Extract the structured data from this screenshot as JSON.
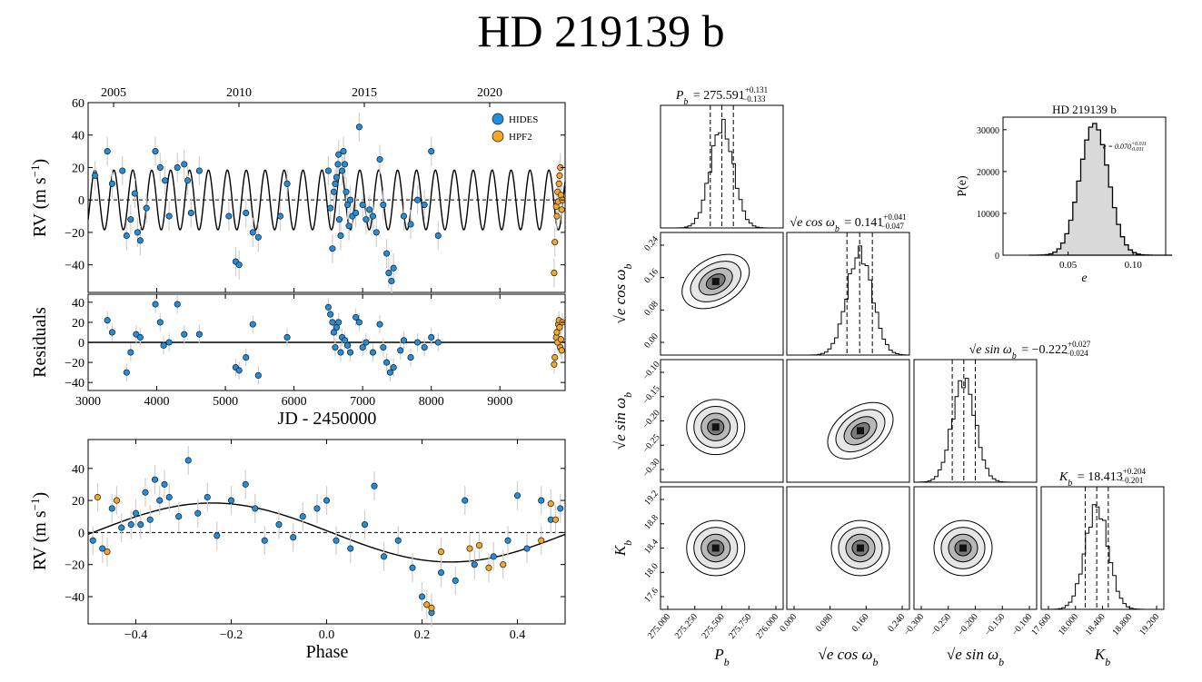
{
  "title": "HD 219139 b",
  "chart_data": [
    {
      "type": "scatter",
      "name": "rv-time-series",
      "xlabel": "JD - 2450000",
      "ylabel": "RV (m s",
      "ylabel_unit": "−1",
      "xlim": [
        3000,
        9950
      ],
      "ylim": [
        -57,
        60
      ],
      "xticks": [
        "3000",
        "4000",
        "5000",
        "6000",
        "7000",
        "8000",
        "9000"
      ],
      "yticks": [
        "−40",
        "−20",
        "0",
        "20",
        "40",
        "60"
      ],
      "top_axis_ticks": [
        "2005",
        "2010",
        "2015",
        "2020"
      ],
      "top_axis_values": [
        3371,
        5198,
        7024,
        8851
      ],
      "model": {
        "K": 18.4,
        "P": 275.591,
        "t0": 3100
      },
      "legend": [
        "HIDES",
        "HPF2"
      ],
      "series": [
        {
          "name": "HIDES",
          "color": "#1f8fe0",
          "points": [
            [
              3100,
              15
            ],
            [
              3280,
              30
            ],
            [
              3350,
              10
            ],
            [
              3500,
              18
            ],
            [
              3560,
              -22
            ],
            [
              3620,
              -12
            ],
            [
              3680,
              4
            ],
            [
              3720,
              -20
            ],
            [
              3760,
              -25
            ],
            [
              3850,
              -5
            ],
            [
              3980,
              30
            ],
            [
              4050,
              20
            ],
            [
              4120,
              12
            ],
            [
              4180,
              -10
            ],
            [
              4300,
              20
            ],
            [
              4400,
              22
            ],
            [
              4450,
              12
            ],
            [
              4500,
              -8
            ],
            [
              4620,
              18
            ],
            [
              5050,
              -10
            ],
            [
              5150,
              -38
            ],
            [
              5200,
              -40
            ],
            [
              5300,
              -8
            ],
            [
              5400,
              -20
            ],
            [
              5480,
              -23
            ],
            [
              5800,
              -10
            ],
            [
              5900,
              10
            ],
            [
              6500,
              18
            ],
            [
              6530,
              -5
            ],
            [
              6560,
              -30
            ],
            [
              6580,
              5
            ],
            [
              6600,
              10
            ],
            [
              6620,
              14
            ],
            [
              6640,
              22
            ],
            [
              6650,
              28
            ],
            [
              6660,
              -12
            ],
            [
              6680,
              -22
            ],
            [
              6700,
              18
            ],
            [
              6720,
              30
            ],
            [
              6740,
              22
            ],
            [
              6760,
              5
            ],
            [
              6780,
              -3
            ],
            [
              6800,
              -16
            ],
            [
              6820,
              0
            ],
            [
              6850,
              -10
            ],
            [
              6900,
              -8
            ],
            [
              6950,
              45
            ],
            [
              7000,
              -3
            ],
            [
              7050,
              -12
            ],
            [
              7100,
              -6
            ],
            [
              7150,
              -10
            ],
            [
              7200,
              -20
            ],
            [
              7250,
              25
            ],
            [
              7300,
              -3
            ],
            [
              7350,
              -33
            ],
            [
              7380,
              -45
            ],
            [
              7420,
              -50
            ],
            [
              7450,
              -42
            ],
            [
              7600,
              -10
            ],
            [
              7700,
              -15
            ],
            [
              7800,
              0
            ],
            [
              7900,
              -3
            ],
            [
              8000,
              30
            ],
            [
              8100,
              -22
            ]
          ]
        },
        {
          "name": "HPF2",
          "color": "#f5a623",
          "points": [
            [
              9790,
              -45
            ],
            [
              9800,
              -26
            ],
            [
              9820,
              -4
            ],
            [
              9830,
              -10
            ],
            [
              9840,
              5
            ],
            [
              9850,
              -1
            ],
            [
              9860,
              10
            ],
            [
              9870,
              15
            ],
            [
              9880,
              20
            ],
            [
              9890,
              3
            ],
            [
              9900,
              -6
            ],
            [
              9910,
              0
            ]
          ]
        }
      ]
    },
    {
      "type": "scatter",
      "name": "residuals",
      "ylabel": "Residuals",
      "xlim": [
        3000,
        9950
      ],
      "ylim": [
        -48,
        48
      ],
      "yticks": [
        "−40",
        "−20",
        "0",
        "20",
        "40"
      ],
      "series": [
        {
          "name": "HIDES",
          "color": "#1f8fe0",
          "points": [
            [
              3280,
              22
            ],
            [
              3350,
              10
            ],
            [
              3560,
              -30
            ],
            [
              3620,
              -10
            ],
            [
              3700,
              8
            ],
            [
              3760,
              5
            ],
            [
              3980,
              38
            ],
            [
              4050,
              20
            ],
            [
              4100,
              -3
            ],
            [
              4180,
              0
            ],
            [
              4300,
              38
            ],
            [
              4400,
              8
            ],
            [
              4620,
              8
            ],
            [
              5150,
              -25
            ],
            [
              5200,
              -28
            ],
            [
              5300,
              -15
            ],
            [
              5400,
              18
            ],
            [
              5480,
              -33
            ],
            [
              5900,
              5
            ],
            [
              6500,
              35
            ],
            [
              6530,
              28
            ],
            [
              6560,
              20
            ],
            [
              6580,
              10
            ],
            [
              6600,
              -5
            ],
            [
              6620,
              15
            ],
            [
              6650,
              20
            ],
            [
              6680,
              -10
            ],
            [
              6700,
              5
            ],
            [
              6740,
              2
            ],
            [
              6780,
              -3
            ],
            [
              6820,
              -10
            ],
            [
              6900,
              25
            ],
            [
              6950,
              20
            ],
            [
              7000,
              -5
            ],
            [
              7050,
              0
            ],
            [
              7150,
              -10
            ],
            [
              7250,
              18
            ],
            [
              7300,
              -5
            ],
            [
              7350,
              -20
            ],
            [
              7400,
              -30
            ],
            [
              7450,
              -25
            ],
            [
              7550,
              -8
            ],
            [
              7600,
              2
            ],
            [
              7700,
              -15
            ],
            [
              7800,
              0
            ],
            [
              7900,
              -5
            ],
            [
              8000,
              5
            ],
            [
              8100,
              0
            ]
          ]
        },
        {
          "name": "HPF2",
          "color": "#f5a623",
          "points": [
            [
              9790,
              -22
            ],
            [
              9800,
              -15
            ],
            [
              9820,
              5
            ],
            [
              9830,
              10
            ],
            [
              9840,
              0
            ],
            [
              9850,
              18
            ],
            [
              9860,
              22
            ],
            [
              9870,
              15
            ],
            [
              9880,
              -5
            ],
            [
              9890,
              3
            ],
            [
              9900,
              -8
            ],
            [
              9910,
              20
            ]
          ]
        }
      ]
    },
    {
      "type": "scatter",
      "name": "phase-folded",
      "xlabel": "Phase",
      "ylabel": "RV (m s",
      "ylabel_unit": "−1",
      "xlim": [
        -0.5,
        0.5
      ],
      "ylim": [
        -57,
        58
      ],
      "xticks": [
        "−0.4",
        "−0.2",
        "0.0",
        "0.2",
        "0.4"
      ],
      "yticks": [
        "−40",
        "−20",
        "0",
        "20",
        "40"
      ],
      "model": {
        "K": 18.4,
        "phase_min": 0.26
      },
      "series": [
        {
          "name": "HIDES",
          "color": "#1f8fe0",
          "points": [
            [
              -0.49,
              -5
            ],
            [
              -0.47,
              -10
            ],
            [
              -0.45,
              15
            ],
            [
              -0.43,
              3
            ],
            [
              -0.41,
              5
            ],
            [
              -0.4,
              12
            ],
            [
              -0.39,
              5
            ],
            [
              -0.38,
              25
            ],
            [
              -0.37,
              8
            ],
            [
              -0.36,
              33
            ],
            [
              -0.35,
              20
            ],
            [
              -0.34,
              30
            ],
            [
              -0.33,
              22
            ],
            [
              -0.31,
              10
            ],
            [
              -0.29,
              45
            ],
            [
              -0.27,
              12
            ],
            [
              -0.25,
              22
            ],
            [
              -0.23,
              -2
            ],
            [
              -0.2,
              20
            ],
            [
              -0.17,
              30
            ],
            [
              -0.15,
              15
            ],
            [
              -0.13,
              -5
            ],
            [
              -0.1,
              5
            ],
            [
              -0.07,
              -3
            ],
            [
              -0.05,
              10
            ],
            [
              -0.02,
              15
            ],
            [
              0.0,
              20
            ],
            [
              0.02,
              -5
            ],
            [
              0.05,
              -10
            ],
            [
              0.08,
              5
            ],
            [
              0.1,
              29
            ],
            [
              0.12,
              -15
            ],
            [
              0.15,
              -5
            ],
            [
              0.18,
              -22
            ],
            [
              0.2,
              -40
            ],
            [
              0.22,
              -50
            ],
            [
              0.24,
              -25
            ],
            [
              0.27,
              -30
            ],
            [
              0.29,
              20
            ],
            [
              0.31,
              -20
            ],
            [
              0.35,
              -15
            ],
            [
              0.38,
              -5
            ],
            [
              0.4,
              23
            ],
            [
              0.42,
              -10
            ],
            [
              0.45,
              20
            ],
            [
              0.47,
              8
            ],
            [
              0.49,
              15
            ]
          ]
        },
        {
          "name": "HPF2",
          "color": "#f5a623",
          "points": [
            [
              -0.48,
              22
            ],
            [
              -0.46,
              -12
            ],
            [
              -0.44,
              20
            ],
            [
              0.21,
              -45
            ],
            [
              0.22,
              -47
            ],
            [
              0.24,
              -12
            ],
            [
              0.3,
              -10
            ],
            [
              0.32,
              -8
            ],
            [
              0.34,
              -22
            ],
            [
              0.37,
              -20
            ],
            [
              0.45,
              -5
            ],
            [
              0.47,
              18
            ],
            [
              0.48,
              8
            ]
          ]
        }
      ]
    },
    {
      "type": "corner",
      "name": "mcmc-corner",
      "parameters": [
        {
          "key": "P",
          "label": "P",
          "sub": "b",
          "value": "275.591",
          "plus": "+0.131",
          "minus": "−0.133",
          "ticks": [
            "275.000",
            "275.250",
            "275.500",
            "275.750",
            "276.000"
          ],
          "mean": 0.5,
          "sigma": 0.1
        },
        {
          "key": "ecos",
          "label": "√e cos ω",
          "sub": "b",
          "value": "0.141",
          "plus": "+0.041",
          "minus": "−0.047",
          "ticks": [
            "0.000",
            "0.080",
            "0.160",
            "0.240"
          ],
          "mean": 0.6,
          "sigma": 0.11
        },
        {
          "key": "esin",
          "label": "√e sin ω",
          "sub": "b",
          "value": "−0.222",
          "plus": "+0.027",
          "minus": "−0.024",
          "ticks": [
            "−0.300",
            "−0.250",
            "−0.200",
            "−0.150",
            "−0.100"
          ],
          "mean": 0.4,
          "sigma": 0.1
        },
        {
          "key": "K",
          "label": "K",
          "sub": "b",
          "value": "18.413",
          "plus": "+0.204",
          "minus": "−0.201",
          "ticks": [
            "17.600",
            "18.000",
            "18.400",
            "18.800",
            "19.200"
          ],
          "mean": 0.45,
          "sigma": 0.1
        }
      ],
      "row_ticks": {
        "ecos": [
          "0.24",
          "0.16",
          "0.08",
          "0.00"
        ],
        "esin": [
          "−0.10",
          "−0.15",
          "−0.20",
          "−0.25",
          "−0.30"
        ],
        "K": [
          "19.2",
          "18.8",
          "18.4",
          "18.0",
          "17.6"
        ]
      },
      "contour_centers": [
        {
          "row": 1,
          "col": 0,
          "cx": 0.45,
          "cy": 0.4,
          "tilt": -30
        },
        {
          "row": 2,
          "col": 0,
          "cx": 0.45,
          "cy": 0.55,
          "tilt": 0
        },
        {
          "row": 2,
          "col": 1,
          "cx": 0.6,
          "cy": 0.58,
          "tilt": -35
        },
        {
          "row": 3,
          "col": 0,
          "cx": 0.45,
          "cy": 0.5,
          "tilt": 0
        },
        {
          "row": 3,
          "col": 1,
          "cx": 0.6,
          "cy": 0.5,
          "tilt": 0
        },
        {
          "row": 3,
          "col": 2,
          "cx": 0.4,
          "cy": 0.5,
          "tilt": 0
        }
      ]
    },
    {
      "type": "histogram",
      "name": "eccentricity-hist",
      "title": "HD 219139 b",
      "xlabel": "e",
      "ylabel": "P(e)",
      "annotation": "e = 0.070",
      "annotation_plus": "+0.011",
      "annotation_minus": "−0.011",
      "xlim": [
        0.0,
        0.125
      ],
      "ylim": [
        0,
        33000
      ],
      "xticks": [
        "0.05",
        "0.10"
      ],
      "xtick_values": [
        0.05,
        0.1
      ],
      "yticks": [
        "0",
        "10000",
        "20000",
        "30000"
      ],
      "ytick_values": [
        0,
        10000,
        20000,
        30000
      ],
      "mean": 0.07,
      "sigma": 0.011,
      "peak": 31500
    }
  ]
}
